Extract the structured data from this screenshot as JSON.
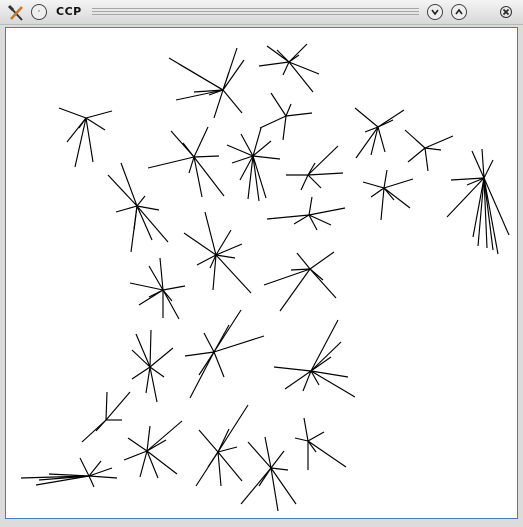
{
  "window": {
    "title": "CCP",
    "app_icon": "tools-icon",
    "menu_icon": "window-menu-icon",
    "minimize_icon": "chevron-down-icon",
    "maximize_icon": "chevron-up-icon",
    "close_icon": "close-icon"
  },
  "canvas": {
    "description_icon": "star-graph-drawing"
  },
  "colors": {
    "titlebar": "#e4e4e4",
    "canvas_border": "#4a7eb8",
    "stroke": "#000000"
  }
}
